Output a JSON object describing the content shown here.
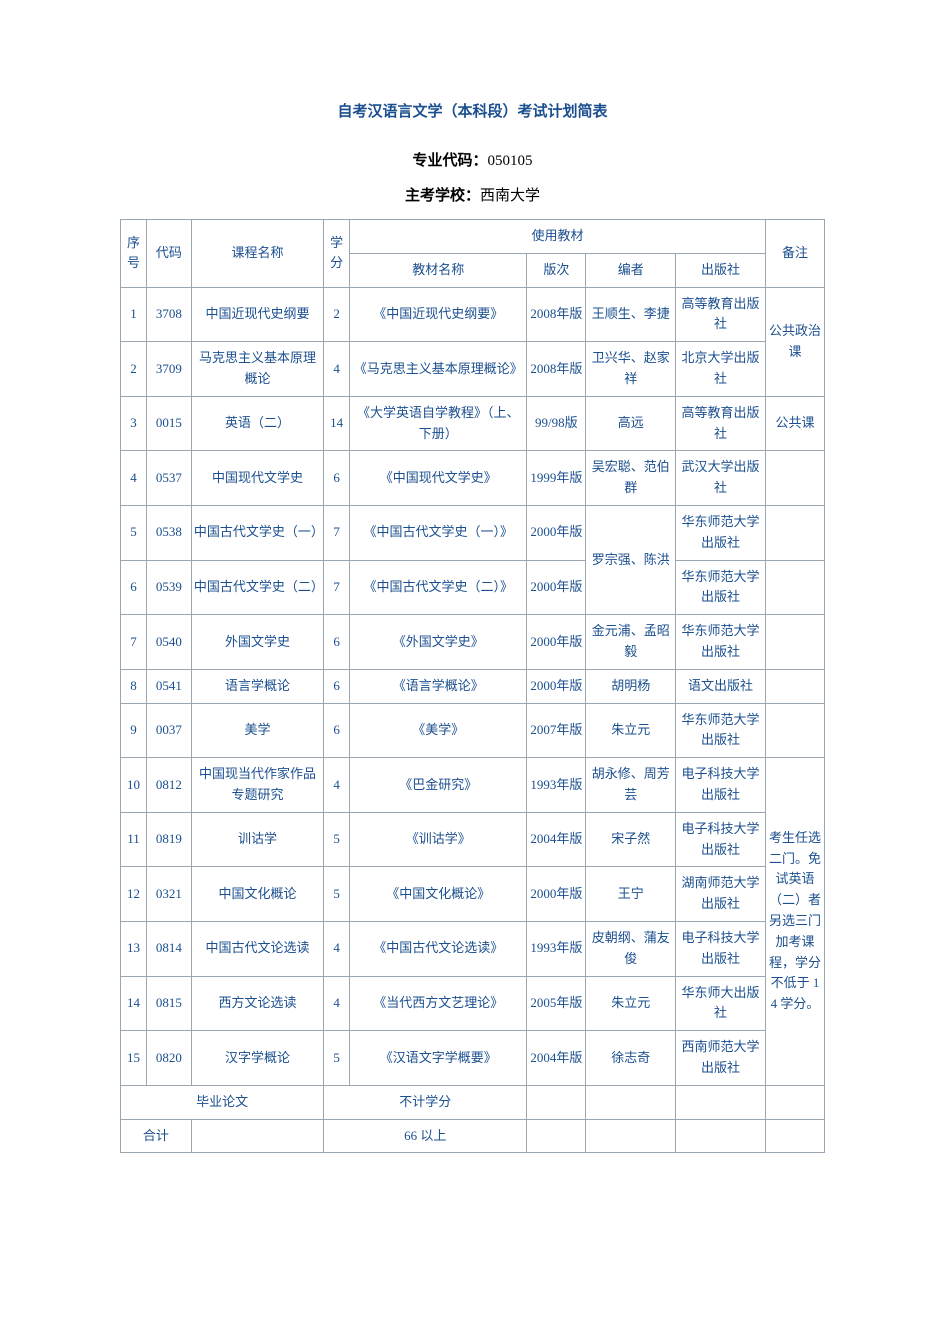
{
  "title": "自考汉语言文学（本科段）考试计划简表",
  "meta": {
    "major_code_label": "专业代码：",
    "major_code_value": "050105",
    "school_label": "主考学校：",
    "school_value": "西南大学"
  },
  "header": {
    "seq": "序号",
    "code": "代码",
    "course": "课程名称",
    "credit": "学分",
    "textbook_group": "使用教材",
    "textbook_name": "教材名称",
    "edition": "版次",
    "author": "编者",
    "publisher": "出版社",
    "note": "备注"
  },
  "rows": [
    {
      "seq": "1",
      "code": "3708",
      "course": "中国近现代史纲要",
      "credit": "2",
      "book": "《中国近现代史纲要》",
      "edition": "2008年版",
      "author": "王顺生、李捷",
      "publisher": "高等教育出版社"
    },
    {
      "seq": "2",
      "code": "3709",
      "course": "马克思主义基本原理概论",
      "credit": "4",
      "book": "《马克思主义基本原理概论》",
      "edition": "2008年版",
      "author": "卫兴华、赵家祥",
      "publisher": "北京大学出版社"
    },
    {
      "seq": "3",
      "code": "0015",
      "course": "英语（二）",
      "credit": "14",
      "book": "《大学英语自学教程》（上、下册）",
      "edition": "99/98版",
      "author": "高远",
      "publisher": "高等教育出版社"
    },
    {
      "seq": "4",
      "code": "0537",
      "course": "中国现代文学史",
      "credit": "6",
      "book": "《中国现代文学史》",
      "edition": "1999年版",
      "author": "吴宏聪、范伯群",
      "publisher": "武汉大学出版社"
    },
    {
      "seq": "5",
      "code": "0538",
      "course": "中国古代文学史（一）",
      "credit": "7",
      "book": "《中国古代文学史（一）》",
      "edition": "2000年版",
      "publisher": "华东师范大学出版社"
    },
    {
      "seq": "6",
      "code": "0539",
      "course": "中国古代文学史（二）",
      "credit": "7",
      "book": "《中国古代文学史（二）》",
      "edition": "2000年版",
      "publisher": "华东师范大学出版社"
    },
    {
      "seq": "7",
      "code": "0540",
      "course": "外国文学史",
      "credit": "6",
      "book": "《外国文学史》",
      "edition": "2000年版",
      "author": "金元浦、孟昭毅",
      "publisher": "华东师范大学出版社"
    },
    {
      "seq": "8",
      "code": "0541",
      "course": "语言学概论",
      "credit": "6",
      "book": "《语言学概论》",
      "edition": "2000年版",
      "author": "胡明杨",
      "publisher": "语文出版社"
    },
    {
      "seq": "9",
      "code": "0037",
      "course": "美学",
      "credit": "6",
      "book": "《美学》",
      "edition": "2007年版",
      "author": "朱立元",
      "publisher": "华东师范大学出版社"
    },
    {
      "seq": "10",
      "code": "0812",
      "course": "中国现当代作家作品专题研究",
      "credit": "4",
      "book": "《巴金研究》",
      "edition": "1993年版",
      "author": "胡永修、周芳芸",
      "publisher": "电子科技大学出版社"
    },
    {
      "seq": "11",
      "code": "0819",
      "course": "训诂学",
      "credit": "5",
      "book": "《训诂学》",
      "edition": "2004年版",
      "author": "宋子然",
      "publisher": "电子科技大学出版社"
    },
    {
      "seq": "12",
      "code": "0321",
      "course": "中国文化概论",
      "credit": "5",
      "book": "《中国文化概论》",
      "edition": "2000年版",
      "author": "王宁",
      "publisher": "湖南师范大学出版社"
    },
    {
      "seq": "13",
      "code": "0814",
      "course": "中国古代文论选读",
      "credit": "4",
      "book": "《中国古代文论选读》",
      "edition": "1993年版",
      "author": "皮朝纲、蒲友俊",
      "publisher": "电子科技大学出版社"
    },
    {
      "seq": "14",
      "code": "0815",
      "course": "西方文论选读",
      "credit": "4",
      "book": "《当代西方文艺理论》",
      "edition": "2005年版",
      "author": "朱立元",
      "publisher": "华东师大出版社"
    },
    {
      "seq": "15",
      "code": "0820",
      "course": "汉字学概论",
      "credit": "5",
      "book": "《汉语文字学概要》",
      "edition": "2004年版",
      "author": "徐志奇",
      "publisher": "西南师范大学出版社"
    }
  ],
  "merged": {
    "author_5_6": "罗宗强、陈洪",
    "note_1_2": "公共政治课",
    "note_3": "公共课",
    "note_10_15": "考生任选二门。免试英语（二）者另选三门加考课程，学分不低于 14 学分。"
  },
  "footer": {
    "thesis_label": "毕业论文",
    "thesis_credit": "不计学分",
    "total_label": "合计",
    "total_value": "66 以上"
  },
  "style": {
    "text_color": "#1b4f8f",
    "black_color": "#000000",
    "border_color": "#9aa6b2",
    "background_color": "#ffffff",
    "title_fontsize": 15,
    "body_fontsize": 13
  }
}
